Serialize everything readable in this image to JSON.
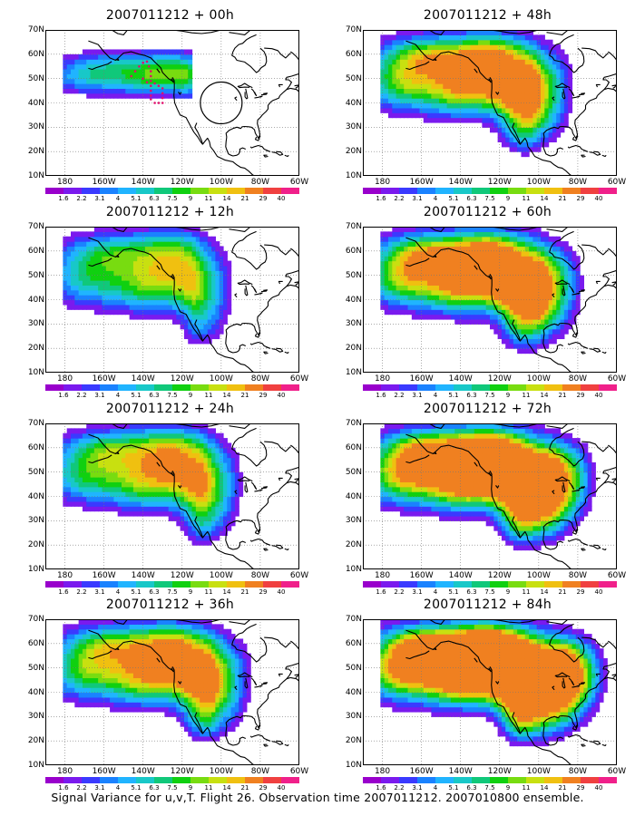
{
  "panels": [
    {
      "title": "2007011212 + 00h",
      "intensity": 0.15,
      "target": "ring"
    },
    {
      "title": "2007011212 + 12h",
      "intensity": 0.25,
      "target": "none"
    },
    {
      "title": "2007011212 + 24h",
      "intensity": 0.35,
      "target": "none"
    },
    {
      "title": "2007011212 + 36h",
      "intensity": 0.45,
      "target": "none"
    },
    {
      "title": "2007011212 + 48h",
      "intensity": 0.5,
      "target": "none"
    },
    {
      "title": "2007011212 + 60h",
      "intensity": 0.6,
      "target": "none"
    },
    {
      "title": "2007011212 + 72h",
      "intensity": 0.75,
      "target": "none"
    },
    {
      "title": "2007011212 + 84h",
      "intensity": 0.9,
      "target": "none"
    }
  ],
  "lat_labels": [
    "70N",
    "60N",
    "50N",
    "40N",
    "30N",
    "20N",
    "10N"
  ],
  "lon_labels": [
    "180",
    "160W",
    "140W",
    "120W",
    "100W",
    "80W",
    "60W"
  ],
  "colorbar": {
    "colors": [
      "#9900cc",
      "#7a1aee",
      "#3a3aff",
      "#1a82ff",
      "#20b4ff",
      "#18c8c8",
      "#10c87a",
      "#10d010",
      "#78dc10",
      "#c8e010",
      "#f0c010",
      "#f08020",
      "#f04040",
      "#f0208a"
    ],
    "labels": [
      "1.6",
      "2.2",
      "3.1",
      "4",
      "5.1",
      "6.3",
      "7.5",
      "9",
      "11",
      "14",
      "21",
      "29",
      "40"
    ]
  },
  "caption": "Signal Variance for u,v,T. Flight 26. Observation time 2007011212. 2007010800 ensemble."
}
